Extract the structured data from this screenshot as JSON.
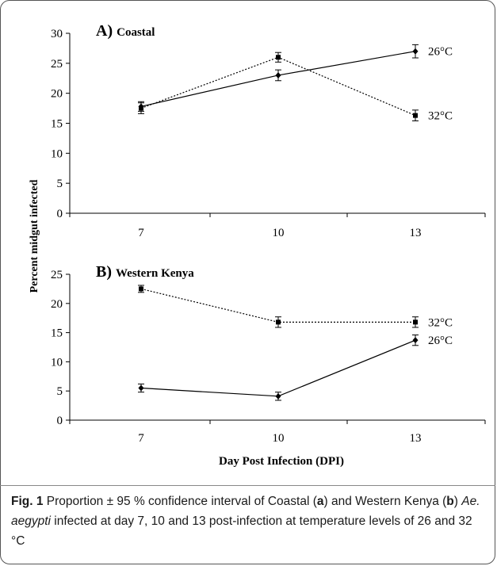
{
  "figure": {
    "ylabel": "Percent midgut infected",
    "xlabel": "Day Post Infection (DPI)"
  },
  "caption": {
    "fig_label": "Fig. 1",
    "text_1": " Proportion ± 95 % confidence interval of Coastal (",
    "bold_a": "a",
    "text_2": ") and Western Kenya (",
    "bold_b": "b",
    "text_3": ") ",
    "species": "Ae. aegypti",
    "text_4": " infected at day 7, 10 and 13 post-infection at temperature levels of 26 and 32 °C"
  },
  "chart_data": [
    {
      "type": "line",
      "panel_letter": "A)",
      "title": "Coastal",
      "x": [
        7,
        10,
        13
      ],
      "ylim": [
        0,
        30
      ],
      "yticks": [
        0,
        5,
        10,
        15,
        20,
        25,
        30
      ],
      "series": [
        {
          "name": "26°C",
          "values": [
            17.8,
            23.0,
            27.0
          ],
          "err": [
            0.8,
            0.9,
            1.1
          ],
          "marker": "diamond",
          "line": "solid"
        },
        {
          "name": "32°C",
          "values": [
            17.5,
            26.0,
            16.3
          ],
          "err": [
            0.9,
            0.8,
            0.9
          ],
          "marker": "square",
          "line": "dotted"
        }
      ]
    },
    {
      "type": "line",
      "panel_letter": "B)",
      "title": "Western Kenya",
      "x": [
        7,
        10,
        13
      ],
      "ylim": [
        0,
        25
      ],
      "yticks": [
        0,
        5,
        10,
        15,
        20,
        25
      ],
      "series": [
        {
          "name": "26°C",
          "values": [
            5.5,
            4.1,
            13.7
          ],
          "err": [
            0.7,
            0.7,
            0.9
          ],
          "marker": "diamond",
          "line": "solid"
        },
        {
          "name": "32°C",
          "values": [
            22.5,
            16.8,
            16.8
          ],
          "err": [
            0.6,
            0.9,
            0.9
          ],
          "marker": "square",
          "line": "dotted"
        }
      ]
    }
  ]
}
